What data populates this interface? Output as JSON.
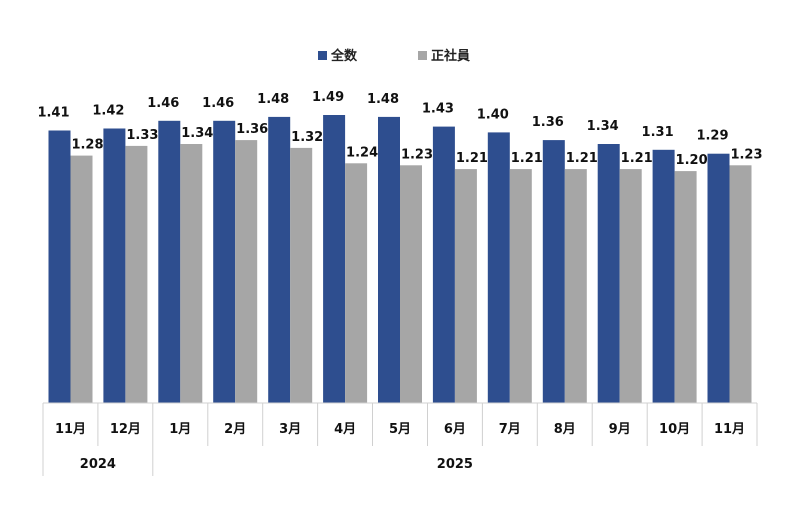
{
  "chart_data": {
    "type": "bar",
    "categories": [
      "11月",
      "12月",
      "1月",
      "2月",
      "3月",
      "4月",
      "5月",
      "6月",
      "7月",
      "8月",
      "9月",
      "10月",
      "11月"
    ],
    "year_groups": [
      {
        "label": "2024",
        "count": 2
      },
      {
        "label": "2025",
        "count": 11
      }
    ],
    "series": [
      {
        "name": "全数",
        "color": "#2E4E8F",
        "values": [
          1.41,
          1.42,
          1.46,
          1.46,
          1.48,
          1.49,
          1.48,
          1.43,
          1.4,
          1.36,
          1.34,
          1.31,
          1.29
        ]
      },
      {
        "name": "正社員",
        "color": "#A6A6A6",
        "values": [
          1.28,
          1.33,
          1.34,
          1.36,
          1.32,
          1.24,
          1.23,
          1.21,
          1.21,
          1.21,
          1.21,
          1.2,
          1.23
        ]
      }
    ],
    "ylim": [
      0,
      1.55
    ],
    "grid": false,
    "legend": "top-center",
    "value_format": "0.00"
  }
}
